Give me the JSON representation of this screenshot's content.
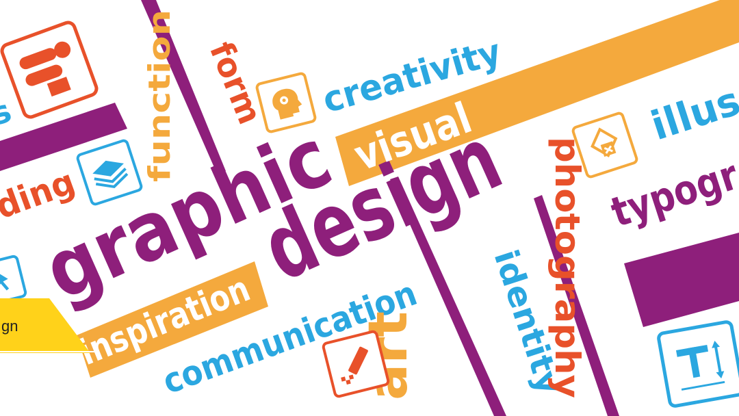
{
  "banner": {
    "words": {
      "graphic": "graphic",
      "design": "design",
      "creativity": "creativity",
      "visual": "visual",
      "form": "form",
      "function": "function",
      "branding": "ding",
      "inspiration": "inspiration",
      "communication": "communication",
      "art": "art",
      "identity": "identity",
      "photography": "photography",
      "typography": "typogr",
      "illustration": "illus",
      "left_fragment": "s"
    },
    "tag_label": "gn"
  },
  "colors": {
    "purple": "#8e1f7b",
    "orange": "#f4a93d",
    "blue": "#2ba7e0",
    "red": "#e8512a",
    "yellow": "#ffd21a",
    "background": "#ffffff"
  },
  "icons": [
    "tool-icon",
    "layers-icon",
    "head-gears-icon",
    "shapes-icon",
    "pencil-icon",
    "text-tool-icon",
    "pointer-icon"
  ]
}
